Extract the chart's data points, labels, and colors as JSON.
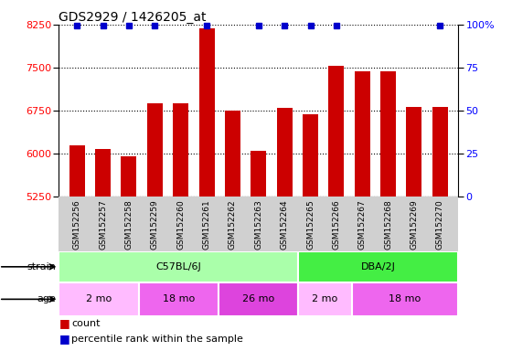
{
  "title": "GDS2929 / 1426205_at",
  "samples": [
    "GSM152256",
    "GSM152257",
    "GSM152258",
    "GSM152259",
    "GSM152260",
    "GSM152261",
    "GSM152262",
    "GSM152263",
    "GSM152264",
    "GSM152265",
    "GSM152266",
    "GSM152267",
    "GSM152268",
    "GSM152269",
    "GSM152270"
  ],
  "counts": [
    6150,
    6080,
    5960,
    6870,
    6870,
    8180,
    6750,
    6050,
    6790,
    6690,
    7530,
    7430,
    7430,
    6820,
    6820
  ],
  "show_percentile": [
    true,
    true,
    true,
    true,
    false,
    true,
    false,
    true,
    true,
    true,
    true,
    false,
    false,
    false,
    true
  ],
  "ylim_left": [
    5250,
    8250
  ],
  "ylim_right": [
    0,
    100
  ],
  "yticks_left": [
    5250,
    6000,
    6750,
    7500,
    8250
  ],
  "yticks_right": [
    0,
    25,
    50,
    75,
    100
  ],
  "bar_color": "#cc0000",
  "dot_color": "#0000cc",
  "strain_groups": [
    {
      "label": "C57BL/6J",
      "start": 0,
      "end": 9,
      "color": "#aaffaa"
    },
    {
      "label": "DBA/2J",
      "start": 9,
      "end": 15,
      "color": "#44ee44"
    }
  ],
  "age_groups": [
    {
      "label": "2 mo",
      "start": 0,
      "end": 3,
      "color": "#ffbbff"
    },
    {
      "label": "18 mo",
      "start": 3,
      "end": 6,
      "color": "#ee66ee"
    },
    {
      "label": "26 mo",
      "start": 6,
      "end": 9,
      "color": "#dd44dd"
    },
    {
      "label": "2 mo",
      "start": 9,
      "end": 11,
      "color": "#ffbbff"
    },
    {
      "label": "18 mo",
      "start": 11,
      "end": 15,
      "color": "#ee66ee"
    }
  ]
}
